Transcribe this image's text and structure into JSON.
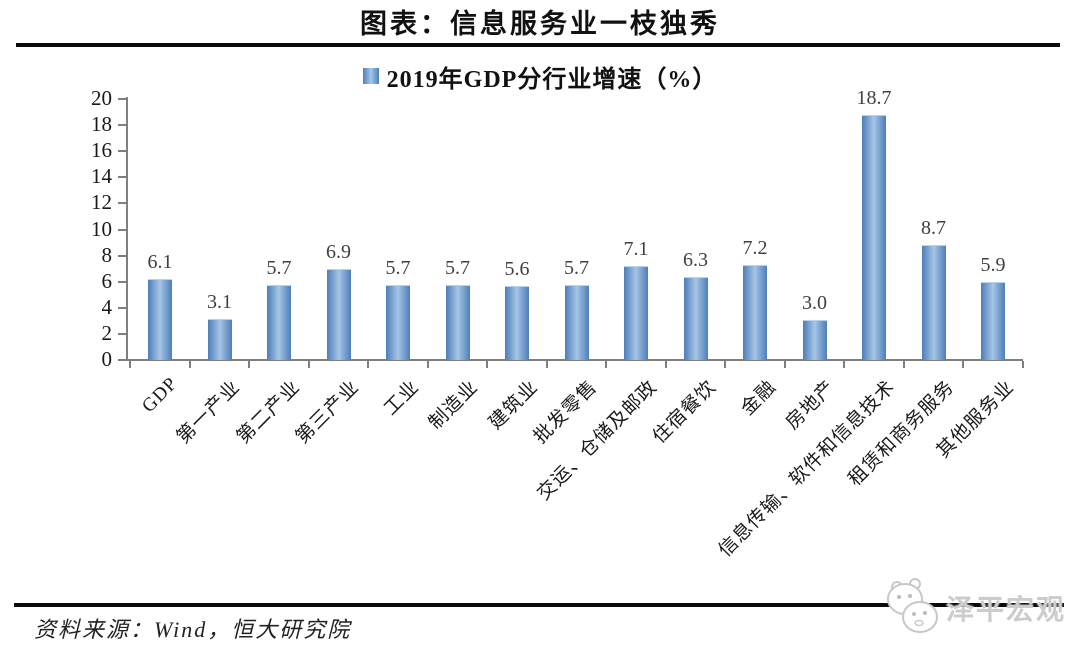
{
  "header": {
    "title": "图表：信息服务业一枝独秀"
  },
  "legend": {
    "label": "2019年GDP分行业增速（%）",
    "marker_color": "#6f9cce"
  },
  "footer": {
    "source": "资料来源：Wind，恒大研究院",
    "watermark": "泽平宏观"
  },
  "colors": {
    "bar_edge": "#4e7fb8",
    "bar_center": "#a6c6e6",
    "axis": "#7f7f7f",
    "rule": "#0a0a0a",
    "value_label": "#404040",
    "watermark_gray": "#cccccc"
  },
  "chart_data": {
    "type": "bar",
    "title": "2019年GDP分行业增速（%）",
    "categories": [
      "GDP",
      "第一产业",
      "第二产业",
      "第三产业",
      "工业",
      "制造业",
      "建筑业",
      "批发零售",
      "交运、仓储及邮政",
      "住宿餐饮",
      "金融",
      "房地产",
      "信息传输、软件和信息技术",
      "租赁和商务服务",
      "其他服务业"
    ],
    "values": [
      6.1,
      3.1,
      5.7,
      6.9,
      5.7,
      5.7,
      5.6,
      5.7,
      7.1,
      6.3,
      7.2,
      3.0,
      18.7,
      8.7,
      5.9
    ],
    "value_labels": [
      "6.1",
      "3.1",
      "5.7",
      "6.9",
      "5.7",
      "5.7",
      "5.6",
      "5.7",
      "7.1",
      "6.3",
      "7.2",
      "3.0",
      "18.7",
      "8.7",
      "5.9"
    ],
    "xlabel": "",
    "ylabel": "",
    "ylim": [
      0,
      20
    ],
    "yticks": [
      0,
      2,
      4,
      6,
      8,
      10,
      12,
      14,
      16,
      18,
      20
    ],
    "grid": false,
    "legend_position": "top-center",
    "value_labels_shown": true
  }
}
